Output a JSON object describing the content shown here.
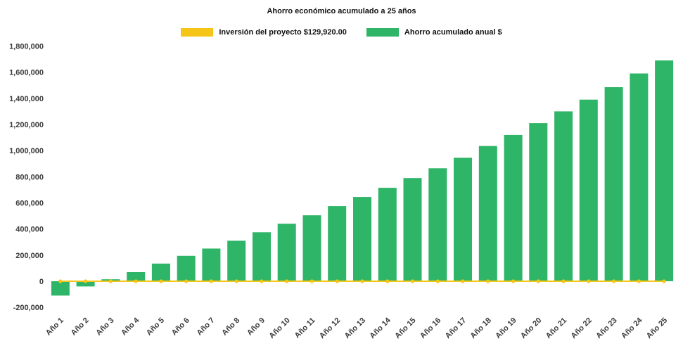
{
  "chart_data": {
    "type": "bar",
    "title": "Ahorro económico acumulado a 25 años",
    "categories": [
      "Año 1",
      "Año 2",
      "Año 3",
      "Año 4",
      "Año 5",
      "Año 6",
      "Año 7",
      "Año 8",
      "Año 9",
      "Año 10",
      "Año 11",
      "Año 12",
      "Año 13",
      "Año 14",
      "Año 15",
      "Año 16",
      "Año 17",
      "Año 18",
      "Año 19",
      "Año 20",
      "Año 21",
      "Año 22",
      "Año 23",
      "Año 24",
      "Año 25"
    ],
    "series": [
      {
        "name": "Inversión del proyecto $129,920.00",
        "type": "line",
        "color": "#F5C518",
        "values": [
          0,
          0,
          0,
          0,
          0,
          0,
          0,
          0,
          0,
          0,
          0,
          0,
          0,
          0,
          0,
          0,
          0,
          0,
          0,
          0,
          0,
          0,
          0,
          0,
          0
        ]
      },
      {
        "name": "Ahorro acumulado anual $",
        "type": "bar",
        "color": "#2EB567",
        "values": [
          -110000,
          -40000,
          15000,
          70000,
          135000,
          195000,
          250000,
          310000,
          375000,
          440000,
          505000,
          575000,
          645000,
          715000,
          790000,
          865000,
          945000,
          1035000,
          1120000,
          1210000,
          1300000,
          1390000,
          1485000,
          1590000,
          1690000
        ]
      }
    ],
    "xlabel": "",
    "ylabel": "",
    "ylim": [
      -200000,
      1800000
    ],
    "ytick_step": 200000,
    "grid": false,
    "legend_position": "top"
  }
}
